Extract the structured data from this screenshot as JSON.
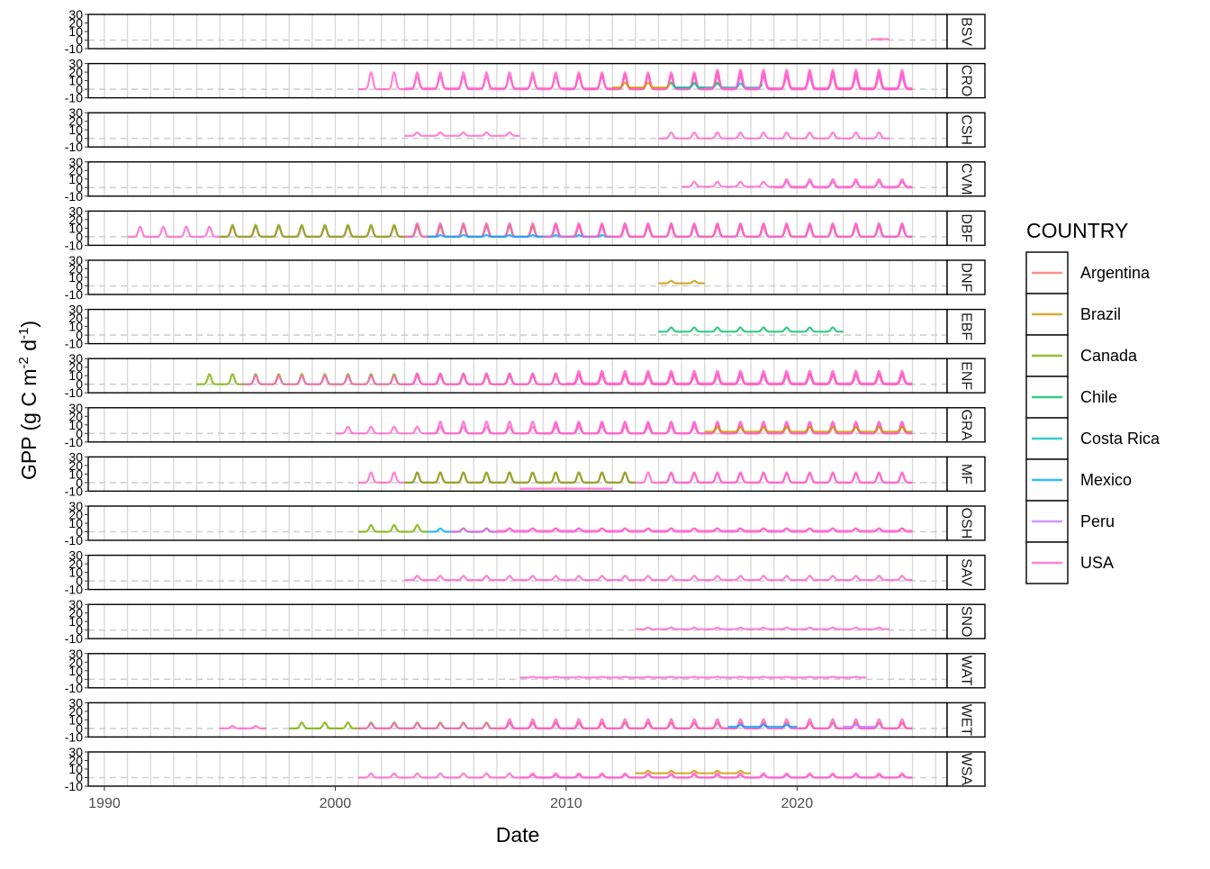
{
  "chart_data": {
    "type": "line",
    "xlabel": "Date",
    "ylabel_main": "GPP (g C m",
    "ylabel_sup1": "-2",
    "ylabel_mid": " d",
    "ylabel_sup2": "-1",
    "ylabel_end": ")",
    "xlim": [
      1989.3,
      2026.5
    ],
    "x_ticks": [
      1990,
      2000,
      2010,
      2020
    ],
    "x_tick_labels": [
      "1990",
      "2000",
      "2010",
      "2020"
    ],
    "x_grid_years": [
      1990,
      1991,
      1992,
      1993,
      1994,
      1995,
      1996,
      1997,
      1998,
      1999,
      2000,
      2001,
      2002,
      2003,
      2004,
      2005,
      2006,
      2007,
      2008,
      2009,
      2010,
      2011,
      2012,
      2013,
      2014,
      2015,
      2016,
      2017,
      2018,
      2019,
      2020,
      2021,
      2022,
      2023,
      2024,
      2025,
      2026
    ],
    "ylim": [
      -10,
      30
    ],
    "y_ticks": [
      -10,
      0,
      10,
      20,
      30
    ],
    "y_tick_labels": [
      "-10",
      "0",
      "10",
      "20",
      "30"
    ],
    "reference_line": 0,
    "grid": true,
    "legend": {
      "title": "COUNTRY",
      "placement": "right",
      "entries": [
        {
          "name": "Argentina",
          "color": "#F8766D"
        },
        {
          "name": "Brazil",
          "color": "#CD9600"
        },
        {
          "name": "Canada",
          "color": "#7CAE00"
        },
        {
          "name": "Chile",
          "color": "#00BE67"
        },
        {
          "name": "Costa Rica",
          "color": "#00BFC4"
        },
        {
          "name": "Mexico",
          "color": "#00A9FF"
        },
        {
          "name": "Peru",
          "color": "#C77CFF"
        },
        {
          "name": "USA",
          "color": "#FF61CC"
        }
      ]
    },
    "facets": [
      {
        "label": "BSV",
        "segments": [
          {
            "country": "USA",
            "start": 2023.2,
            "end": 2024.0,
            "base": 1,
            "amp": 0,
            "peak": 0
          }
        ]
      },
      {
        "label": "CRO",
        "segments": [
          {
            "country": "USA",
            "start": 2001.0,
            "end": 2025.0,
            "base": 0,
            "amp": 20,
            "peak": 6
          },
          {
            "country": "USA",
            "start": 2003.0,
            "end": 2025.0,
            "base": 1,
            "amp": 14,
            "peak": 4
          },
          {
            "country": "USA",
            "start": 2010.0,
            "end": 2025.0,
            "base": 0,
            "amp": 17,
            "peak": 5
          },
          {
            "country": "Brazil",
            "start": 2012.0,
            "end": 2017.0,
            "base": 2,
            "amp": 6,
            "peak": 2
          },
          {
            "country": "Costa Rica",
            "start": 2014.5,
            "end": 2018.5,
            "base": 2,
            "amp": 5,
            "peak": 2
          },
          {
            "country": "USA",
            "start": 2016.0,
            "end": 2025.0,
            "base": 1,
            "amp": 22,
            "peak": 6
          }
        ]
      },
      {
        "label": "CSH",
        "segments": [
          {
            "country": "USA",
            "start": 2003.0,
            "end": 2008.0,
            "base": 3,
            "amp": 4,
            "peak": 1
          },
          {
            "country": "USA",
            "start": 2014.0,
            "end": 2024.0,
            "base": 0,
            "amp": 7,
            "peak": 3
          }
        ]
      },
      {
        "label": "CVM",
        "segments": [
          {
            "country": "USA",
            "start": 2015.0,
            "end": 2025.0,
            "base": 1,
            "amp": 6,
            "peak": 3
          },
          {
            "country": "USA",
            "start": 2019.0,
            "end": 2025.0,
            "base": 0,
            "amp": 10,
            "peak": 4
          }
        ]
      },
      {
        "label": "DBF",
        "segments": [
          {
            "country": "USA",
            "start": 1991.0,
            "end": 2025.0,
            "base": 0,
            "amp": 12,
            "peak": 5
          },
          {
            "country": "Canada",
            "start": 1995.0,
            "end": 2025.0,
            "base": 0,
            "amp": 14,
            "peak": 6
          },
          {
            "country": "USA",
            "start": 2003.0,
            "end": 2025.0,
            "base": 0,
            "amp": 16,
            "peak": 6
          },
          {
            "country": "Mexico",
            "start": 2004.0,
            "end": 2012.0,
            "base": 0,
            "amp": 2,
            "peak": 1
          },
          {
            "country": "USA",
            "start": 2009.0,
            "end": 2025.0,
            "base": 0,
            "amp": 14,
            "peak": 5
          }
        ]
      },
      {
        "label": "DNF",
        "segments": [
          {
            "country": "Brazil",
            "start": 2014.0,
            "end": 2016.0,
            "base": 3,
            "amp": 3,
            "peak": 2
          }
        ]
      },
      {
        "label": "EBF",
        "segments": [
          {
            "country": "Chile",
            "start": 2014.0,
            "end": 2022.0,
            "base": 4,
            "amp": 5,
            "peak": 2
          }
        ]
      },
      {
        "label": "ENF",
        "segments": [
          {
            "country": "Canada",
            "start": 1994.0,
            "end": 2025.0,
            "base": 0,
            "amp": 12,
            "peak": 5
          },
          {
            "country": "USA",
            "start": 1996.0,
            "end": 2025.0,
            "base": 0,
            "amp": 10,
            "peak": 4
          },
          {
            "country": "USA",
            "start": 2003.0,
            "end": 2025.0,
            "base": 0,
            "amp": 13,
            "peak": 5
          },
          {
            "country": "USA",
            "start": 2010.0,
            "end": 2025.0,
            "base": 1,
            "amp": 15,
            "peak": 6
          }
        ]
      },
      {
        "label": "GRA",
        "segments": [
          {
            "country": "USA",
            "start": 2000.0,
            "end": 2025.0,
            "base": 0,
            "amp": 8,
            "peak": 3
          },
          {
            "country": "USA",
            "start": 2004.0,
            "end": 2025.0,
            "base": 0,
            "amp": 14,
            "peak": 5
          },
          {
            "country": "USA",
            "start": 2009.0,
            "end": 2025.0,
            "base": 0,
            "amp": 12,
            "peak": 5
          },
          {
            "country": "Brazil",
            "start": 2016.0,
            "end": 2025.0,
            "base": 2,
            "amp": 6,
            "peak": 2
          }
        ]
      },
      {
        "label": "MF",
        "segments": [
          {
            "country": "USA",
            "start": 2001.0,
            "end": 2025.0,
            "base": 0,
            "amp": 12,
            "peak": 5
          },
          {
            "country": "Canada",
            "start": 2003.0,
            "end": 2013.0,
            "base": 0,
            "amp": 12,
            "peak": 5
          },
          {
            "country": "USA",
            "start": 2008.0,
            "end": 2012.0,
            "base": -7,
            "amp": 0,
            "peak": 0
          },
          {
            "country": "USA",
            "start": 2014.0,
            "end": 2025.0,
            "base": 0,
            "amp": 11,
            "peak": 4
          }
        ]
      },
      {
        "label": "OSH",
        "segments": [
          {
            "country": "Canada",
            "start": 2001.0,
            "end": 2004.0,
            "base": 0,
            "amp": 8,
            "peak": 3
          },
          {
            "country": "Mexico",
            "start": 2004.0,
            "end": 2007.0,
            "base": 0,
            "amp": 4,
            "peak": 2
          },
          {
            "country": "USA",
            "start": 2005.0,
            "end": 2025.0,
            "base": 0,
            "amp": 4,
            "peak": 2
          },
          {
            "country": "USA",
            "start": 2007.0,
            "end": 2025.0,
            "base": 1,
            "amp": 3,
            "peak": 2
          }
        ]
      },
      {
        "label": "SAV",
        "segments": [
          {
            "country": "USA",
            "start": 2003.0,
            "end": 2025.0,
            "base": 1,
            "amp": 5,
            "peak": 2
          }
        ]
      },
      {
        "label": "SNO",
        "segments": [
          {
            "country": "USA",
            "start": 2013.0,
            "end": 2024.0,
            "base": 1,
            "amp": 2,
            "peak": 1
          }
        ]
      },
      {
        "label": "WAT",
        "segments": [
          {
            "country": "USA",
            "start": 2008.0,
            "end": 2023.0,
            "base": 2,
            "amp": 1,
            "peak": 1
          }
        ]
      },
      {
        "label": "WET",
        "segments": [
          {
            "country": "USA",
            "start": 1995.0,
            "end": 1997.0,
            "base": 0,
            "amp": 3,
            "peak": 1
          },
          {
            "country": "Canada",
            "start": 1998.0,
            "end": 2025.0,
            "base": 0,
            "amp": 7,
            "peak": 3
          },
          {
            "country": "USA",
            "start": 2001.0,
            "end": 2025.0,
            "base": 0,
            "amp": 6,
            "peak": 2
          },
          {
            "country": "USA",
            "start": 2007.0,
            "end": 2025.0,
            "base": 0,
            "amp": 11,
            "peak": 4
          },
          {
            "country": "Mexico",
            "start": 2017.0,
            "end": 2020.0,
            "base": 2,
            "amp": 2,
            "peak": 1
          },
          {
            "country": "Peru",
            "start": 2022.0,
            "end": 2023.5,
            "base": 2,
            "amp": 2,
            "peak": 1
          }
        ]
      },
      {
        "label": "WSA",
        "segments": [
          {
            "country": "USA",
            "start": 2001.0,
            "end": 2025.0,
            "base": 0,
            "amp": 5,
            "peak": 2
          },
          {
            "country": "Brazil",
            "start": 2013.0,
            "end": 2018.0,
            "base": 5,
            "amp": 3,
            "peak": 2
          },
          {
            "country": "USA",
            "start": 2008.0,
            "end": 2025.0,
            "base": 0,
            "amp": 3,
            "peak": 2
          }
        ]
      }
    ]
  }
}
